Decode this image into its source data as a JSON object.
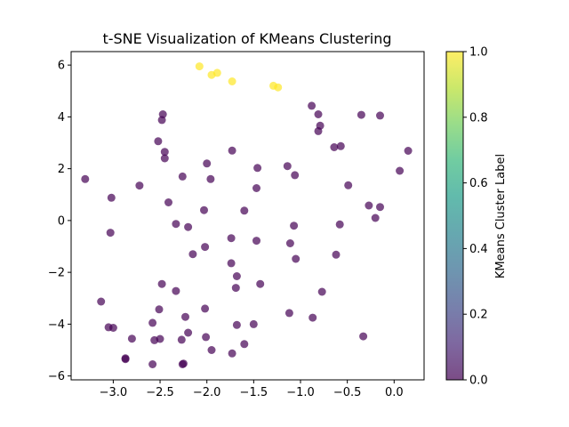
{
  "chart_data": {
    "type": "scatter",
    "title": "t-SNE Visualization of KMeans Clustering",
    "xlabel": "",
    "ylabel": "",
    "xlim": [
      -3.45,
      0.32
    ],
    "ylim": [
      -6.15,
      6.52
    ],
    "xticks": [
      -3.0,
      -2.5,
      -2.0,
      -1.5,
      -1.0,
      -0.5,
      0.0
    ],
    "xtick_labels": [
      "−3.0",
      "−2.5",
      "−2.0",
      "−1.5",
      "−1.0",
      "−0.5",
      "0.0"
    ],
    "yticks": [
      -6,
      -4,
      -2,
      0,
      2,
      4,
      6
    ],
    "ytick_labels": [
      "−6",
      "−4",
      "−2",
      "0",
      "2",
      "4",
      "6"
    ],
    "colorbar": {
      "label": "KMeans Cluster Label",
      "range": [
        0.0,
        1.0
      ],
      "ticks": [
        0.0,
        0.2,
        0.4,
        0.6,
        0.8,
        1.0
      ],
      "tick_labels": [
        "0.0",
        "0.2",
        "0.4",
        "0.6",
        "0.8",
        "1.0"
      ],
      "colormap": "viridis",
      "low_color": "#440154",
      "high_color": "#fde725"
    },
    "marker_alpha": 0.7,
    "points": [
      {
        "x": -2.08,
        "y": 5.95,
        "label": 1
      },
      {
        "x": -1.95,
        "y": 5.62,
        "label": 1
      },
      {
        "x": -1.89,
        "y": 5.7,
        "label": 1
      },
      {
        "x": -1.73,
        "y": 5.37,
        "label": 1
      },
      {
        "x": -1.29,
        "y": 5.2,
        "label": 1
      },
      {
        "x": -1.24,
        "y": 5.14,
        "label": 1
      },
      {
        "x": -3.3,
        "y": 1.6,
        "label": 0
      },
      {
        "x": -3.02,
        "y": 0.88,
        "label": 0
      },
      {
        "x": -3.03,
        "y": -0.47,
        "label": 0
      },
      {
        "x": -2.72,
        "y": 1.35,
        "label": 0
      },
      {
        "x": -2.52,
        "y": 3.06,
        "label": 0
      },
      {
        "x": -2.48,
        "y": 3.88,
        "label": 0
      },
      {
        "x": -2.47,
        "y": 4.1,
        "label": 0
      },
      {
        "x": -2.45,
        "y": 2.65,
        "label": 0
      },
      {
        "x": -2.45,
        "y": 2.4,
        "label": 0
      },
      {
        "x": -2.41,
        "y": 0.7,
        "label": 0
      },
      {
        "x": -2.26,
        "y": 1.7,
        "label": 0
      },
      {
        "x": -2.33,
        "y": -0.13,
        "label": 0
      },
      {
        "x": -2.2,
        "y": -0.25,
        "label": 0
      },
      {
        "x": -2.0,
        "y": 2.2,
        "label": 0
      },
      {
        "x": -1.96,
        "y": 1.6,
        "label": 0
      },
      {
        "x": -2.03,
        "y": 0.4,
        "label": 0
      },
      {
        "x": -2.02,
        "y": -1.02,
        "label": 0
      },
      {
        "x": -2.15,
        "y": -1.3,
        "label": 0
      },
      {
        "x": -1.73,
        "y": 2.7,
        "label": 0
      },
      {
        "x": -1.74,
        "y": -0.68,
        "label": 0
      },
      {
        "x": -1.6,
        "y": 0.38,
        "label": 0
      },
      {
        "x": -1.46,
        "y": 2.03,
        "label": 0
      },
      {
        "x": -1.47,
        "y": 1.25,
        "label": 0
      },
      {
        "x": -1.47,
        "y": -0.78,
        "label": 0
      },
      {
        "x": -1.74,
        "y": -1.65,
        "label": 0
      },
      {
        "x": -1.68,
        "y": -2.15,
        "label": 0
      },
      {
        "x": -1.69,
        "y": -2.6,
        "label": 0
      },
      {
        "x": -1.43,
        "y": -2.45,
        "label": 0
      },
      {
        "x": -1.14,
        "y": 2.1,
        "label": 0
      },
      {
        "x": -1.06,
        "y": 1.75,
        "label": 0
      },
      {
        "x": -1.07,
        "y": -0.2,
        "label": 0
      },
      {
        "x": -1.11,
        "y": -0.88,
        "label": 0
      },
      {
        "x": -1.05,
        "y": -1.48,
        "label": 0
      },
      {
        "x": -0.88,
        "y": 4.43,
        "label": 0
      },
      {
        "x": -0.81,
        "y": 4.1,
        "label": 0
      },
      {
        "x": -0.79,
        "y": 3.66,
        "label": 0
      },
      {
        "x": -0.81,
        "y": 3.45,
        "label": 0
      },
      {
        "x": -0.64,
        "y": 2.83,
        "label": 0
      },
      {
        "x": -0.57,
        "y": 2.87,
        "label": 0
      },
      {
        "x": -0.49,
        "y": 1.36,
        "label": 0
      },
      {
        "x": -0.58,
        "y": -0.15,
        "label": 0
      },
      {
        "x": -0.62,
        "y": -1.32,
        "label": 0
      },
      {
        "x": -0.77,
        "y": -2.75,
        "label": 0
      },
      {
        "x": -0.35,
        "y": 4.08,
        "label": 0
      },
      {
        "x": -0.15,
        "y": 4.05,
        "label": 0
      },
      {
        "x": 0.15,
        "y": 2.69,
        "label": 0
      },
      {
        "x": 0.06,
        "y": 1.92,
        "label": 0
      },
      {
        "x": -0.27,
        "y": 0.58,
        "label": 0
      },
      {
        "x": -0.15,
        "y": 0.52,
        "label": 0
      },
      {
        "x": -0.2,
        "y": 0.1,
        "label": 0
      },
      {
        "x": -3.13,
        "y": -3.13,
        "label": 0
      },
      {
        "x": -3.05,
        "y": -4.12,
        "label": 0
      },
      {
        "x": -3.0,
        "y": -4.14,
        "label": 0
      },
      {
        "x": -2.8,
        "y": -4.56,
        "label": 0
      },
      {
        "x": -2.87,
        "y": -5.32,
        "label": 0
      },
      {
        "x": -2.87,
        "y": -5.35,
        "label": 0
      },
      {
        "x": -2.48,
        "y": -2.45,
        "label": 0
      },
      {
        "x": -2.51,
        "y": -3.43,
        "label": 0
      },
      {
        "x": -2.58,
        "y": -3.95,
        "label": 0
      },
      {
        "x": -2.56,
        "y": -4.62,
        "label": 0
      },
      {
        "x": -2.5,
        "y": -4.57,
        "label": 0
      },
      {
        "x": -2.58,
        "y": -5.55,
        "label": 0
      },
      {
        "x": -2.33,
        "y": -2.72,
        "label": 0
      },
      {
        "x": -2.23,
        "y": -3.72,
        "label": 0
      },
      {
        "x": -2.2,
        "y": -4.33,
        "label": 0
      },
      {
        "x": -2.27,
        "y": -4.6,
        "label": 0
      },
      {
        "x": -2.25,
        "y": -5.52,
        "label": 0
      },
      {
        "x": -2.26,
        "y": -5.55,
        "label": 0
      },
      {
        "x": -2.02,
        "y": -3.4,
        "label": 0
      },
      {
        "x": -2.01,
        "y": -4.5,
        "label": 0
      },
      {
        "x": -1.95,
        "y": -5.0,
        "label": 0
      },
      {
        "x": -1.68,
        "y": -4.03,
        "label": 0
      },
      {
        "x": -1.73,
        "y": -5.13,
        "label": 0
      },
      {
        "x": -1.6,
        "y": -4.77,
        "label": 0
      },
      {
        "x": -1.5,
        "y": -4.0,
        "label": 0
      },
      {
        "x": -1.12,
        "y": -3.57,
        "label": 0
      },
      {
        "x": -0.87,
        "y": -3.75,
        "label": 0
      },
      {
        "x": -0.33,
        "y": -4.47,
        "label": 0
      }
    ]
  }
}
